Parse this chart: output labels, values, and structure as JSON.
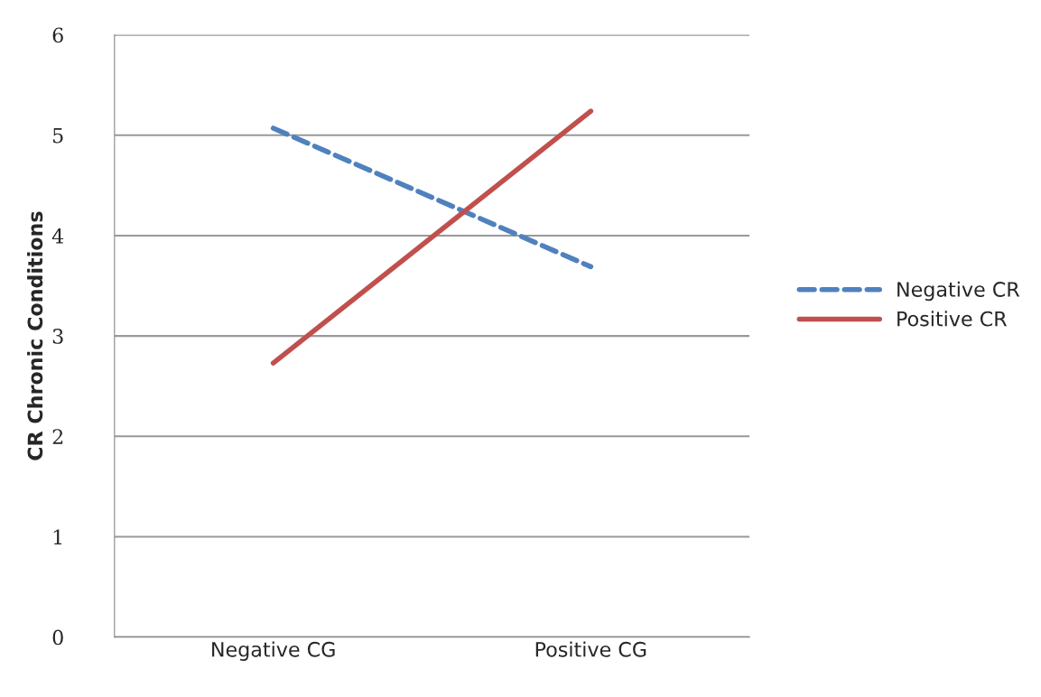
{
  "chart_data": {
    "type": "line",
    "ylabel": "CR Chronic Conditions",
    "categories": [
      "Negative CG",
      "Positive CG"
    ],
    "series": [
      {
        "name": "Negative CR",
        "color": "#4f81bd",
        "values": [
          5.07,
          3.69
        ],
        "line_style": "dashed"
      },
      {
        "name": "Positive CR",
        "color": "#c0504d",
        "values": [
          2.73,
          5.24
        ],
        "line_style": "solid"
      }
    ],
    "ylim": [
      0,
      6
    ],
    "yticks": [
      0,
      1,
      2,
      3,
      4,
      5,
      6
    ],
    "grid": "y",
    "legend": "right",
    "marker": "none"
  }
}
